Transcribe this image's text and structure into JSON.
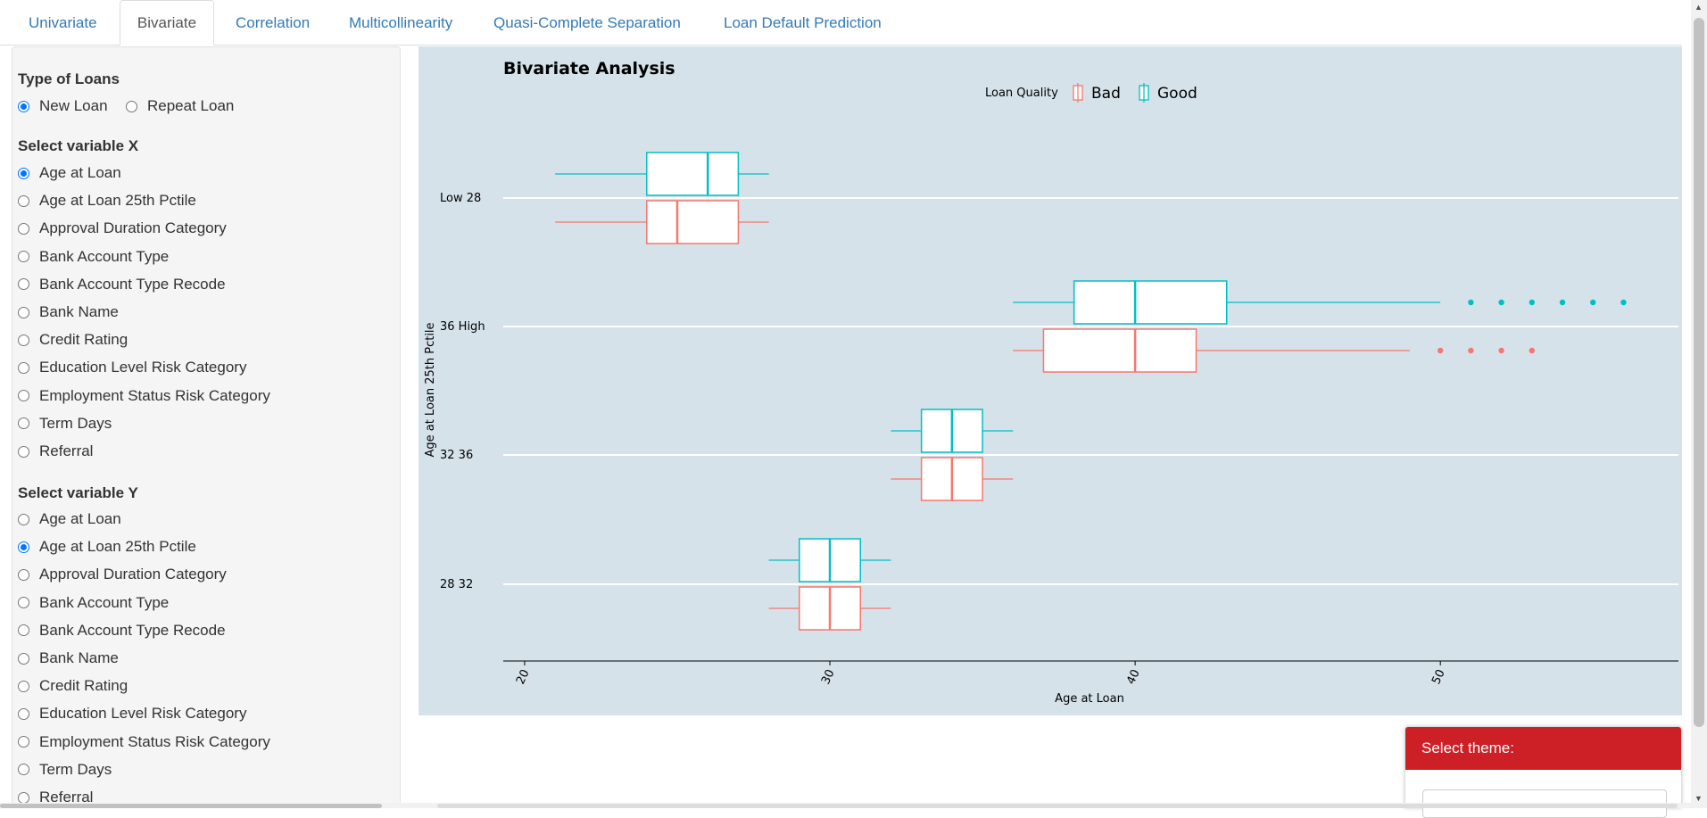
{
  "tabs": [
    {
      "label": "Univariate",
      "active": false
    },
    {
      "label": "Bivariate",
      "active": true
    },
    {
      "label": "Correlation",
      "active": false
    },
    {
      "label": "Multicollinearity",
      "active": false
    },
    {
      "label": "Quasi-Complete Separation",
      "active": false
    },
    {
      "label": "Loan Default Prediction",
      "active": false
    }
  ],
  "sidebar": {
    "loan_type": {
      "label": "Type of Loans",
      "options": [
        "New Loan",
        "Repeat Loan"
      ],
      "selected": "New Loan"
    },
    "var_x": {
      "label": "Select variable X",
      "options": [
        "Age at Loan",
        "Age at Loan 25th Pctile",
        "Approval Duration Category",
        "Bank Account Type",
        "Bank Account Type Recode",
        "Bank Name",
        "Credit Rating",
        "Education Level Risk Category",
        "Employment Status Risk Category",
        "Term Days",
        "Referral"
      ],
      "selected": "Age at Loan"
    },
    "var_y": {
      "label": "Select variable Y",
      "options": [
        "Age at Loan",
        "Age at Loan 25th Pctile",
        "Approval Duration Category",
        "Bank Account Type",
        "Bank Account Type Recode",
        "Bank Name",
        "Credit Rating",
        "Education Level Risk Category",
        "Employment Status Risk Category",
        "Term Days",
        "Referral"
      ],
      "selected": "Age at Loan 25th Pctile"
    }
  },
  "theme": {
    "label": "Select theme:"
  },
  "colors": {
    "bad": "#f8766d",
    "good": "#00bfc4",
    "panel": "#d5e2e9",
    "accent": "#cc1f26",
    "link": "#337ab7"
  },
  "chart_data": {
    "type": "boxplot",
    "orientation": "horizontal",
    "title": "Bivariate Analysis",
    "xlabel": "Age at Loan",
    "ylabel": "Age at Loan 25th Pctile",
    "xlim": [
      19.3,
      57.8
    ],
    "xticks": [
      20,
      30,
      40,
      50
    ],
    "categories": [
      "Low  28",
      "36  High",
      "32  36",
      "28  32"
    ],
    "legend": {
      "title": "Loan Quality",
      "position": "top",
      "entries": [
        "Bad",
        "Good"
      ]
    },
    "grid": true,
    "series": [
      {
        "name": "Good",
        "color": "#00bfc4",
        "boxes": [
          {
            "category": "Low  28",
            "min": 21,
            "q1": 24,
            "median": 26,
            "q3": 27,
            "max": 28,
            "outliers": []
          },
          {
            "category": "36  High",
            "min": 36,
            "q1": 38,
            "median": 40,
            "q3": 43,
            "max": 50,
            "outliers": [
              51,
              52,
              53,
              54,
              55,
              56
            ]
          },
          {
            "category": "32  36",
            "min": 32,
            "q1": 33,
            "median": 34,
            "q3": 35,
            "max": 36,
            "outliers": []
          },
          {
            "category": "28  32",
            "min": 28,
            "q1": 29,
            "median": 30,
            "q3": 31,
            "max": 32,
            "outliers": []
          }
        ]
      },
      {
        "name": "Bad",
        "color": "#f8766d",
        "boxes": [
          {
            "category": "Low  28",
            "min": 21,
            "q1": 24,
            "median": 25,
            "q3": 27,
            "max": 28,
            "outliers": []
          },
          {
            "category": "36  High",
            "min": 36,
            "q1": 37,
            "median": 40,
            "q3": 42,
            "max": 49,
            "outliers": [
              50,
              51,
              52,
              53
            ]
          },
          {
            "category": "32  36",
            "min": 32,
            "q1": 33,
            "median": 34,
            "q3": 35,
            "max": 36,
            "outliers": []
          },
          {
            "category": "28  32",
            "min": 28,
            "q1": 29,
            "median": 30,
            "q3": 31,
            "max": 32,
            "outliers": []
          }
        ]
      }
    ]
  }
}
